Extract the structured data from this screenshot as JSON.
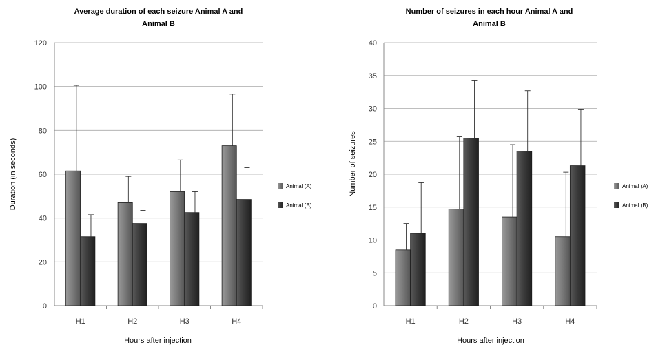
{
  "chart_data": [
    {
      "type": "bar",
      "title": "Average duration of each seizure Animal A  and Animal B",
      "title_lines": [
        "Average duration of each seizure Animal A  and",
        "Animal B"
      ],
      "xlabel": "Hours after injection",
      "ylabel": "Duration (in seconds)",
      "categories": [
        "H1",
        "H2",
        "H3",
        "H4"
      ],
      "ylim": [
        0,
        120
      ],
      "yticks": [
        0,
        20,
        40,
        60,
        80,
        100,
        120
      ],
      "grid": true,
      "legend_position": "right",
      "series": [
        {
          "name": "Animal (A)",
          "values": [
            61.5,
            47,
            52,
            73
          ],
          "error": [
            39,
            12,
            14.5,
            23.5
          ],
          "color": "#7a7a7a"
        },
        {
          "name": "Animal (B)",
          "values": [
            31.5,
            37.5,
            42.5,
            48.5
          ],
          "error": [
            10,
            6,
            9.5,
            14.5
          ],
          "color": "#3a3a3a"
        }
      ]
    },
    {
      "type": "bar",
      "title": "Number of seizures in each hour Animal A and Animal B",
      "title_lines": [
        "Number of seizures in each hour Animal A and",
        "Animal B"
      ],
      "xlabel": "Hours after injection",
      "ylabel": "Number of seizures",
      "categories": [
        "H1",
        "H2",
        "H3",
        "H4"
      ],
      "ylim": [
        0,
        40
      ],
      "yticks": [
        0,
        5,
        10,
        15,
        20,
        25,
        30,
        35,
        40
      ],
      "grid": true,
      "legend_position": "right",
      "series": [
        {
          "name": "Animal (A)",
          "values": [
            8.5,
            14.7,
            13.5,
            10.5
          ],
          "error": [
            4,
            11,
            11,
            9.8
          ],
          "color": "#7a7a7a"
        },
        {
          "name": "Animal (B)",
          "values": [
            11,
            25.5,
            23.5,
            21.3
          ],
          "error": [
            7.7,
            8.8,
            9.2,
            8.5
          ],
          "color": "#3a3a3a"
        }
      ]
    }
  ]
}
